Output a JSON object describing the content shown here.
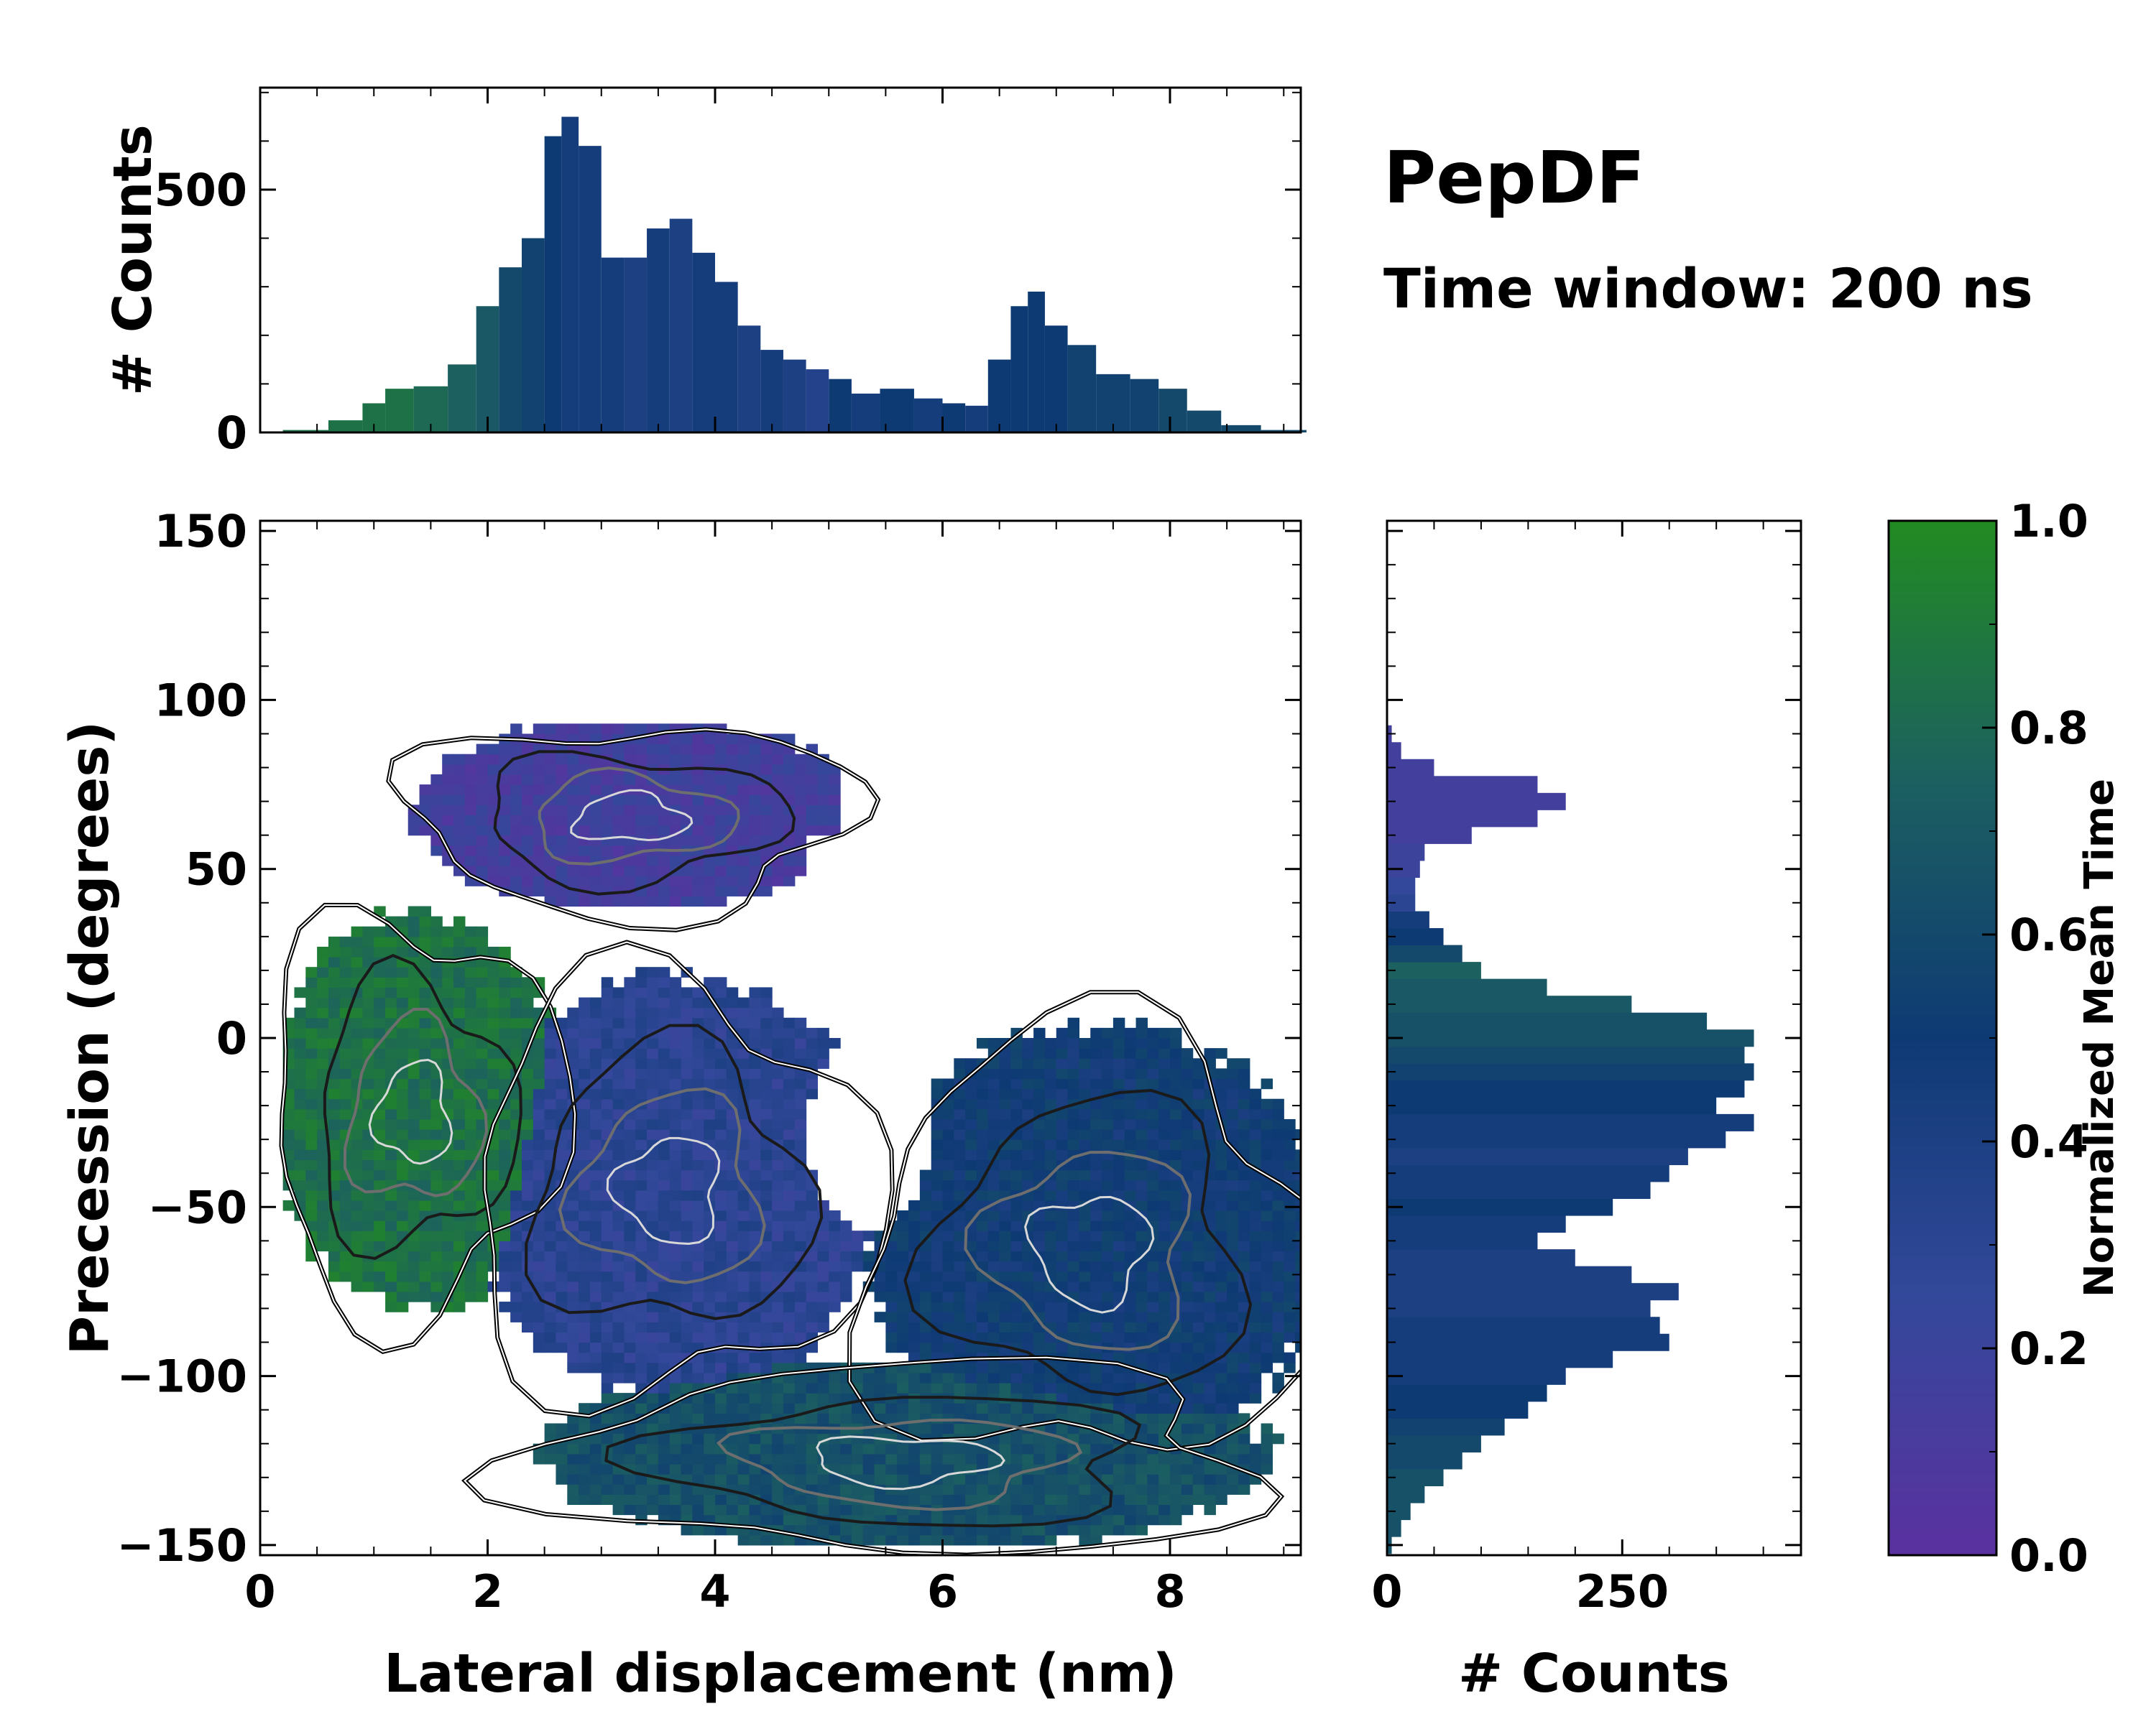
{
  "title": "PepDF",
  "subtitle": "Time window: 200 ns",
  "chart_data": [
    {
      "type": "heatmap",
      "name": "main-2d-histogram",
      "xlabel": "Lateral displacement (nm)",
      "ylabel": "Precession (degrees)",
      "xlim": [
        0,
        9.15
      ],
      "ylim": [
        -153,
        153
      ],
      "xticks": [
        0,
        2,
        4,
        6,
        8
      ],
      "yticks": [
        150,
        100,
        50,
        0,
        -50,
        -100,
        -150
      ],
      "ytick_labels": [
        "150",
        "100",
        "50",
        "0",
        "−50",
        "−100",
        "−150"
      ],
      "color_by": "Normalized Mean Time",
      "regions": [
        {
          "name": "upper-purple-lobe",
          "x_range": [
            1.5,
            5.0
          ],
          "y_range": [
            40,
            90
          ],
          "mean_time": 0.15
        },
        {
          "name": "left-green-region",
          "x_range": [
            0.2,
            2.5
          ],
          "y_range": [
            -75,
            30
          ],
          "mean_time": 0.85
        },
        {
          "name": "central-purple-blue",
          "x_range": [
            2.0,
            5.2
          ],
          "y_range": [
            -100,
            10
          ],
          "mean_time": 0.3
        },
        {
          "name": "right-blue-region",
          "x_range": [
            5.5,
            9.1
          ],
          "y_range": [
            -120,
            -5
          ],
          "mean_time": 0.5
        },
        {
          "name": "bottom-teal-region",
          "x_range": [
            2.8,
            8.5
          ],
          "y_range": [
            -150,
            -100
          ],
          "mean_time": 0.65
        }
      ]
    },
    {
      "type": "bar",
      "name": "top-marginal-histogram",
      "ylabel": "# Counts",
      "xlim": [
        0,
        9.15
      ],
      "ylim": [
        0,
        710
      ],
      "yticks": [
        0,
        500
      ],
      "x": [
        0.4,
        0.8,
        1.0,
        1.2,
        1.5,
        1.8,
        2.0,
        2.2,
        2.4,
        2.6,
        2.7,
        2.9,
        3.1,
        3.3,
        3.5,
        3.7,
        3.9,
        4.1,
        4.3,
        4.5,
        4.7,
        4.9,
        5.1,
        5.3,
        5.6,
        5.9,
        6.1,
        6.3,
        6.5,
        6.7,
        6.8,
        7.0,
        7.2,
        7.5,
        7.8,
        8.0,
        8.3,
        8.6,
        9.0
      ],
      "values": [
        5,
        25,
        60,
        90,
        95,
        140,
        260,
        340,
        400,
        610,
        650,
        590,
        360,
        360,
        420,
        440,
        370,
        310,
        220,
        170,
        150,
        130,
        110,
        80,
        90,
        70,
        60,
        55,
        150,
        260,
        290,
        220,
        180,
        120,
        110,
        90,
        45,
        15,
        5
      ],
      "mean_time": [
        0.85,
        0.85,
        0.85,
        0.85,
        0.8,
        0.75,
        0.7,
        0.6,
        0.55,
        0.5,
        0.45,
        0.45,
        0.45,
        0.4,
        0.45,
        0.4,
        0.45,
        0.45,
        0.4,
        0.45,
        0.4,
        0.35,
        0.5,
        0.45,
        0.5,
        0.45,
        0.5,
        0.45,
        0.5,
        0.5,
        0.5,
        0.5,
        0.55,
        0.55,
        0.55,
        0.6,
        0.6,
        0.6,
        0.6
      ]
    },
    {
      "type": "bar",
      "name": "right-marginal-histogram",
      "orientation": "horizontal",
      "xlabel": "# Counts",
      "xlim": [
        0,
        440
      ],
      "xticks": [
        0,
        250
      ],
      "y": [
        -150,
        -145,
        -140,
        -135,
        -130,
        -125,
        -120,
        -115,
        -110,
        -105,
        -100,
        -95,
        -90,
        -85,
        -80,
        -75,
        -70,
        -65,
        -60,
        -55,
        -50,
        -45,
        -40,
        -35,
        -30,
        -25,
        -20,
        -15,
        -10,
        -5,
        0,
        5,
        10,
        15,
        20,
        25,
        30,
        35,
        40,
        45,
        50,
        55,
        60,
        65,
        70,
        75,
        80,
        85,
        90
      ],
      "values": [
        5,
        15,
        25,
        40,
        60,
        80,
        100,
        125,
        150,
        170,
        190,
        240,
        300,
        290,
        280,
        310,
        260,
        200,
        160,
        190,
        240,
        280,
        300,
        320,
        360,
        390,
        350,
        380,
        390,
        380,
        390,
        340,
        260,
        170,
        100,
        80,
        60,
        45,
        30,
        30,
        35,
        40,
        90,
        160,
        190,
        160,
        50,
        15,
        5
      ],
      "mean_time": [
        0.65,
        0.65,
        0.65,
        0.65,
        0.65,
        0.6,
        0.6,
        0.55,
        0.5,
        0.5,
        0.45,
        0.45,
        0.45,
        0.45,
        0.4,
        0.4,
        0.4,
        0.4,
        0.45,
        0.45,
        0.5,
        0.45,
        0.45,
        0.4,
        0.45,
        0.45,
        0.5,
        0.5,
        0.55,
        0.6,
        0.65,
        0.65,
        0.7,
        0.7,
        0.75,
        0.6,
        0.5,
        0.45,
        0.3,
        0.25,
        0.2,
        0.2,
        0.15,
        0.15,
        0.15,
        0.15,
        0.15,
        0.15,
        0.15
      ]
    },
    {
      "type": "colorbar",
      "name": "colorbar",
      "label": "Normalized Mean Time",
      "range": [
        0.0,
        1.0
      ],
      "ticks": [
        "0.0",
        "0.2",
        "0.4",
        "0.6",
        "0.8",
        "1.0"
      ]
    }
  ],
  "colors": {
    "stops": [
      "#5b31a0",
      "#33489a",
      "#0e3a74",
      "#1c6060",
      "#228b22"
    ],
    "frame": "#000000",
    "contour_dark": "#1a1a1a",
    "contour_mid": "#6e6e6e",
    "contour_light": "#d8d8d8"
  }
}
